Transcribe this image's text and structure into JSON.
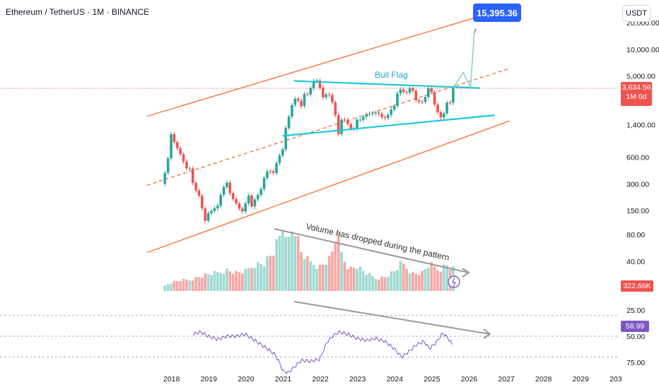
{
  "header": {
    "title": "Ethereum / TetherUS · 1M · BINANCE",
    "currency_button": "USDT"
  },
  "price_tags": {
    "current_price": "3,634.56",
    "bar_time": "1M 0d",
    "volume": "322.66K",
    "rsi": "58.99"
  },
  "annotations": {
    "target": "15,395.36",
    "bull_flag": "Bull Flag",
    "volume_note": "Volume has dropped during the pattern"
  },
  "chart_data": {
    "type": "candlestick",
    "x_ticks": [
      "2018",
      "2019",
      "2020",
      "2021",
      "2022",
      "2023",
      "2024",
      "2025",
      "2026",
      "2027",
      "2028",
      "2029",
      "203"
    ],
    "price_axis": {
      "scale": "log",
      "ticks": [
        "10,000.00",
        "5,000.00",
        "1,400.00",
        "600.00",
        "300.00",
        "150.00",
        "80.00",
        "40.00"
      ],
      "clipped_top_tick": "20,000.00"
    },
    "rsi_axis": {
      "ticks": [
        "75.00",
        "50.00",
        "25.00"
      ]
    },
    "colors": {
      "up": "#26a69a",
      "down": "#ef5350",
      "channel": "#f7733a",
      "flag": "#1cc6d8",
      "rsi": "#7e57c2",
      "rsi_band": "#ede7f6",
      "blue": "#2962ff"
    },
    "price_path": [
      [
        2017.75,
        300
      ],
      [
        2017.9,
        480
      ],
      [
        2018.0,
        1100
      ],
      [
        2018.1,
        850
      ],
      [
        2018.25,
        650
      ],
      [
        2018.4,
        450
      ],
      [
        2018.5,
        450
      ],
      [
        2018.6,
        280
      ],
      [
        2018.75,
        220
      ],
      [
        2018.9,
        110
      ],
      [
        2019.0,
        140
      ],
      [
        2019.1,
        150
      ],
      [
        2019.25,
        170
      ],
      [
        2019.4,
        270
      ],
      [
        2019.5,
        310
      ],
      [
        2019.6,
        220
      ],
      [
        2019.75,
        180
      ],
      [
        2019.9,
        140
      ],
      [
        2020.0,
        180
      ],
      [
        2020.1,
        230
      ],
      [
        2020.2,
        135
      ],
      [
        2020.25,
        200
      ],
      [
        2020.4,
        245
      ],
      [
        2020.5,
        350
      ],
      [
        2020.6,
        430
      ],
      [
        2020.75,
        400
      ],
      [
        2020.9,
        610
      ],
      [
        2021.0,
        740
      ],
      [
        2021.1,
        1400
      ],
      [
        2021.2,
        1900
      ],
      [
        2021.3,
        2800
      ],
      [
        2021.4,
        2700
      ],
      [
        2021.5,
        2280
      ],
      [
        2021.6,
        3300
      ],
      [
        2021.7,
        3000
      ],
      [
        2021.8,
        4300
      ],
      [
        2021.9,
        4600
      ],
      [
        2022.0,
        3700
      ],
      [
        2022.1,
        2700
      ],
      [
        2022.2,
        3300
      ],
      [
        2022.3,
        2800
      ],
      [
        2022.4,
        1950
      ],
      [
        2022.5,
        1100
      ],
      [
        2022.6,
        1700
      ],
      [
        2022.7,
        1550
      ],
      [
        2022.8,
        1300
      ],
      [
        2022.9,
        1200
      ],
      [
        2023.0,
        1600
      ],
      [
        2023.1,
        1600
      ],
      [
        2023.2,
        1800
      ],
      [
        2023.3,
        1870
      ],
      [
        2023.4,
        1870
      ],
      [
        2023.5,
        1930
      ],
      [
        2023.6,
        1850
      ],
      [
        2023.7,
        1650
      ],
      [
        2023.8,
        1700
      ],
      [
        2023.9,
        2050
      ],
      [
        2024.0,
        2300
      ],
      [
        2024.1,
        3350
      ],
      [
        2024.2,
        3600
      ],
      [
        2024.3,
        3010
      ],
      [
        2024.4,
        3700
      ],
      [
        2024.5,
        3400
      ],
      [
        2024.6,
        2500
      ],
      [
        2024.7,
        2600
      ],
      [
        2024.8,
        2500
      ],
      [
        2024.9,
        3700
      ],
      [
        2025.0,
        3300
      ],
      [
        2025.1,
        2200
      ],
      [
        2025.2,
        1820
      ],
      [
        2025.3,
        1580
      ],
      [
        2025.4,
        2500
      ],
      [
        2025.5,
        2480
      ],
      [
        2025.58,
        3700
      ]
    ],
    "volume_path": [
      [
        2017.75,
        0.05
      ],
      [
        2018.0,
        0.12
      ],
      [
        2018.25,
        0.15
      ],
      [
        2018.5,
        0.16
      ],
      [
        2018.75,
        0.2
      ],
      [
        2019.0,
        0.24
      ],
      [
        2019.25,
        0.26
      ],
      [
        2019.5,
        0.3
      ],
      [
        2019.75,
        0.26
      ],
      [
        2020.0,
        0.28
      ],
      [
        2020.25,
        0.38
      ],
      [
        2020.5,
        0.4
      ],
      [
        2020.75,
        0.55
      ],
      [
        2020.95,
        0.8
      ],
      [
        2021.05,
        1.0
      ],
      [
        2021.15,
        0.7
      ],
      [
        2021.3,
        0.95
      ],
      [
        2021.5,
        0.55
      ],
      [
        2021.7,
        0.42
      ],
      [
        2022.0,
        0.35
      ],
      [
        2022.3,
        0.48
      ],
      [
        2022.45,
        0.85
      ],
      [
        2022.6,
        0.5
      ],
      [
        2022.8,
        0.32
      ],
      [
        2023.0,
        0.35
      ],
      [
        2023.25,
        0.25
      ],
      [
        2023.5,
        0.18
      ],
      [
        2023.75,
        0.2
      ],
      [
        2024.0,
        0.28
      ],
      [
        2024.2,
        0.4
      ],
      [
        2024.5,
        0.25
      ],
      [
        2024.75,
        0.26
      ],
      [
        2024.95,
        0.38
      ],
      [
        2025.2,
        0.3
      ],
      [
        2025.4,
        0.38
      ],
      [
        2025.58,
        0.32
      ]
    ],
    "rsi_path": [
      [
        2018.6,
        48
      ],
      [
        2018.8,
        46
      ],
      [
        2019.0,
        50
      ],
      [
        2019.25,
        53
      ],
      [
        2019.5,
        50
      ],
      [
        2019.75,
        50
      ],
      [
        2020.0,
        48
      ],
      [
        2020.25,
        54
      ],
      [
        2020.5,
        60
      ],
      [
        2020.75,
        66
      ],
      [
        2020.9,
        74
      ],
      [
        2021.0,
        83
      ],
      [
        2021.15,
        85
      ],
      [
        2021.3,
        80
      ],
      [
        2021.5,
        73
      ],
      [
        2021.75,
        74
      ],
      [
        2022.0,
        72
      ],
      [
        2022.2,
        55
      ],
      [
        2022.35,
        50
      ],
      [
        2022.5,
        46
      ],
      [
        2022.75,
        48
      ],
      [
        2023.0,
        52
      ],
      [
        2023.25,
        54
      ],
      [
        2023.5,
        52
      ],
      [
        2023.75,
        55
      ],
      [
        2024.0,
        62
      ],
      [
        2024.2,
        70
      ],
      [
        2024.45,
        63
      ],
      [
        2024.6,
        58
      ],
      [
        2024.8,
        55
      ],
      [
        2024.95,
        62
      ],
      [
        2025.15,
        55
      ],
      [
        2025.3,
        47
      ],
      [
        2025.45,
        52
      ],
      [
        2025.58,
        59
      ]
    ],
    "channel_lines": [
      {
        "x1": 2017.35,
        "p1": 1750,
        "x2": 2027.1,
        "p2": 30000
      },
      {
        "x1": 2017.35,
        "p1": 290,
        "x2": 2027.1,
        "p2": 6100
      },
      {
        "x1": 2017.35,
        "p1": 50,
        "x2": 2027.1,
        "p2": 1550
      }
    ],
    "flag_lines": [
      {
        "x1": 2021.3,
        "p1": 4400,
        "x2": 2026.3,
        "p2": 3650
      },
      {
        "x1": 2021.0,
        "p1": 1050,
        "x2": 2026.7,
        "p2": 1800
      }
    ],
    "projection": [
      [
        2025.58,
        3634.56
      ],
      [
        2025.85,
        5500
      ],
      [
        2026.05,
        3700
      ],
      [
        2026.15,
        15395.36
      ]
    ]
  }
}
